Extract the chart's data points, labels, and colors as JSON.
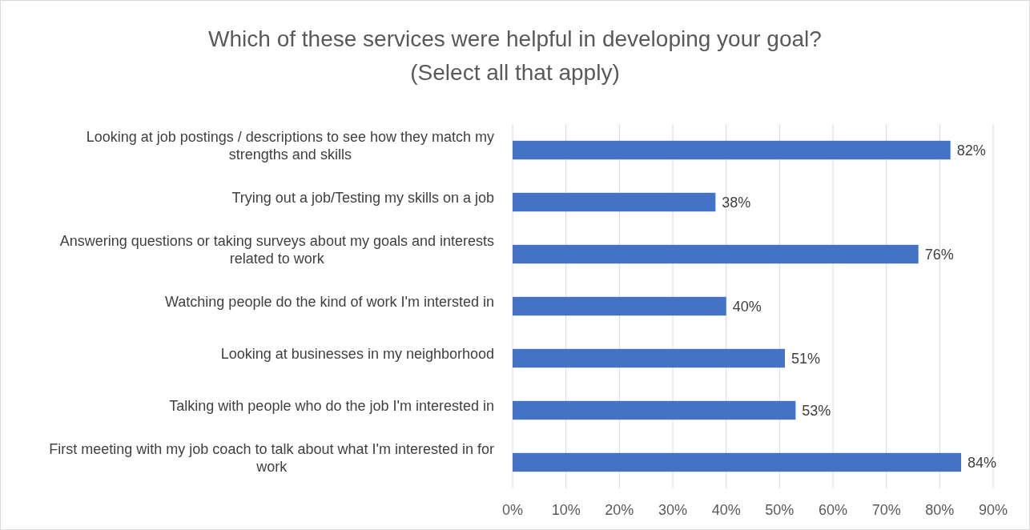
{
  "chart_data": {
    "type": "bar",
    "orientation": "horizontal",
    "title": "Which of these services were helpful in developing your goal?",
    "subtitle": "(Select all that apply)",
    "categories": [
      "Looking at job postings / descriptions to see how they match my strengths and skills",
      "Trying out a job/Testing my skills on a job",
      "Answering questions or taking surveys about my goals and interests related to work",
      "Watching people do the kind of work I'm intersted in",
      "Looking at businesses in my neighborhood",
      "Talking with people who do the job I'm interested in",
      "First meeting with my job coach to talk about what I'm interested in for work"
    ],
    "values": [
      82,
      38,
      76,
      40,
      51,
      53,
      84
    ],
    "value_labels": [
      "82%",
      "38%",
      "76%",
      "40%",
      "51%",
      "53%",
      "84%"
    ],
    "color": "#4472c4",
    "xlim": [
      0,
      90
    ],
    "xticks": [
      {
        "value": 0,
        "label": "0%"
      },
      {
        "value": 10,
        "label": "10%"
      },
      {
        "value": 20,
        "label": "20%"
      },
      {
        "value": 30,
        "label": "30%"
      },
      {
        "value": 40,
        "label": "40%"
      },
      {
        "value": 50,
        "label": "50%"
      },
      {
        "value": 60,
        "label": "60%"
      },
      {
        "value": 70,
        "label": "70%"
      },
      {
        "value": 80,
        "label": "80%"
      },
      {
        "value": 90,
        "label": "90%"
      }
    ],
    "grid": "x"
  }
}
